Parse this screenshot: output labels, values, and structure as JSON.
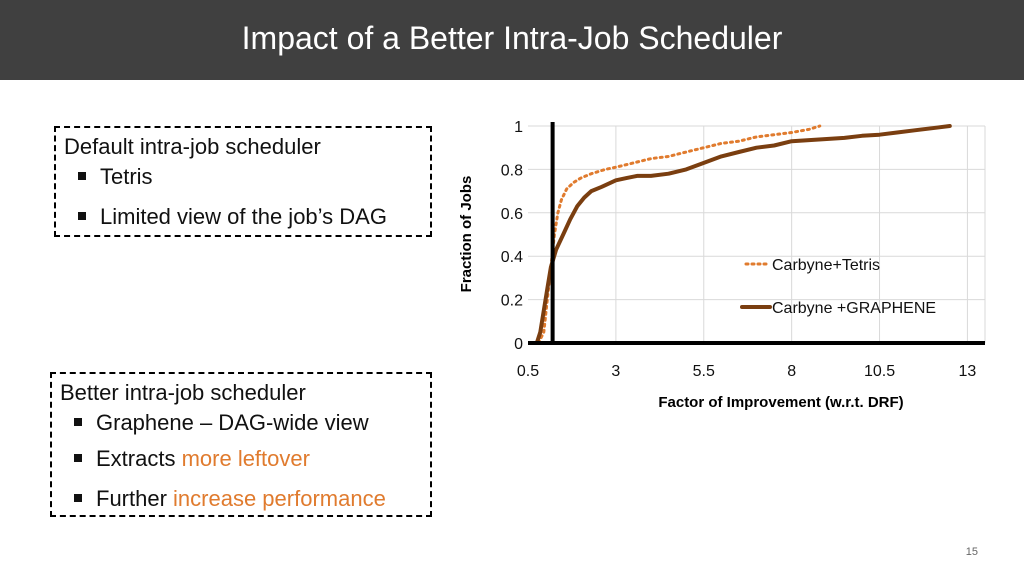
{
  "slide": {
    "title": "Impact of a Better Intra-Job Scheduler",
    "page_number": "15"
  },
  "box1": {
    "heading": "Default intra-job scheduler",
    "bullets": [
      "Tetris",
      "Limited view of the job’s DAG"
    ]
  },
  "box2": {
    "heading": "Better intra-job scheduler",
    "bullet1": "Graphene – DAG-wide view",
    "bullet2_prefix": "Extracts ",
    "bullet2_highlight": "more leftover",
    "bullet3_prefix": "Further ",
    "bullet3_highlight": "increase performance",
    "highlight_color": "#E07B2E"
  },
  "chart_data": {
    "type": "line",
    "title": "",
    "xlabel": "Factor of Improvement (w.r.t. DRF)",
    "ylabel": "Fraction of Jobs",
    "xlim": [
      0.5,
      13.5
    ],
    "ylim": [
      0,
      1
    ],
    "x_ticks": [
      0.5,
      3,
      5.5,
      8,
      10.5,
      13
    ],
    "x_tick_labels": [
      "0.5",
      "3",
      "5.5",
      "8",
      "10.5",
      "13"
    ],
    "y_ticks": [
      0,
      0.2,
      0.4,
      0.6,
      0.8,
      1
    ],
    "y_tick_labels": [
      "0",
      "0.2",
      "0.4",
      "0.6",
      "0.8",
      "1"
    ],
    "grid": true,
    "series": [
      {
        "name": "Carbyne+Tetris",
        "style": "dotted",
        "color": "#E07B2E",
        "x": [
          0.8,
          0.95,
          1.05,
          1.15,
          1.25,
          1.35,
          1.45,
          1.6,
          1.8,
          2.0,
          2.3,
          2.7,
          3.0,
          3.5,
          4.0,
          4.5,
          5.0,
          5.5,
          6.0,
          6.5,
          7.0,
          7.5,
          8.0,
          8.5,
          8.8
        ],
        "y": [
          0.0,
          0.05,
          0.2,
          0.35,
          0.5,
          0.6,
          0.66,
          0.71,
          0.74,
          0.76,
          0.78,
          0.8,
          0.81,
          0.83,
          0.85,
          0.86,
          0.88,
          0.9,
          0.92,
          0.93,
          0.95,
          0.96,
          0.97,
          0.985,
          1.0
        ]
      },
      {
        "name": "Carbyne +GRAPHENE",
        "style": "solid",
        "color": "#7A3E10",
        "x": [
          0.75,
          0.85,
          0.95,
          1.05,
          1.15,
          1.3,
          1.5,
          1.7,
          1.9,
          2.1,
          2.3,
          2.6,
          3.0,
          3.3,
          3.6,
          4.0,
          4.5,
          5.0,
          5.5,
          6.0,
          6.5,
          7.0,
          7.5,
          8.0,
          8.5,
          9.0,
          9.5,
          10.0,
          10.5,
          11.0,
          11.5,
          12.0,
          12.5
        ],
        "y": [
          0.0,
          0.05,
          0.15,
          0.25,
          0.35,
          0.43,
          0.5,
          0.57,
          0.63,
          0.67,
          0.7,
          0.72,
          0.75,
          0.76,
          0.77,
          0.77,
          0.78,
          0.8,
          0.83,
          0.86,
          0.88,
          0.9,
          0.91,
          0.93,
          0.935,
          0.94,
          0.945,
          0.955,
          0.96,
          0.97,
          0.98,
          0.99,
          1.0
        ]
      }
    ]
  }
}
